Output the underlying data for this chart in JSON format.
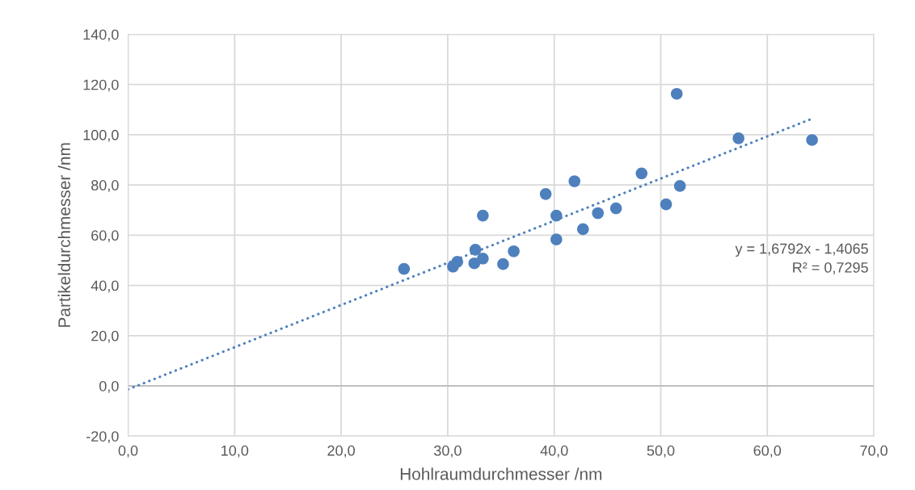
{
  "chart_data": {
    "type": "scatter",
    "xlabel": "Hohlraumdurchmesser /nm",
    "ylabel": "Partikeldurchmesser /nm",
    "xlim": [
      0,
      70
    ],
    "ylim": [
      -20,
      140
    ],
    "xticks": [
      {
        "value": 0,
        "label": "0,0"
      },
      {
        "value": 10,
        "label": "10,0"
      },
      {
        "value": 20,
        "label": "20,0"
      },
      {
        "value": 30,
        "label": "30,0"
      },
      {
        "value": 40,
        "label": "40,0"
      },
      {
        "value": 50,
        "label": "50,0"
      },
      {
        "value": 60,
        "label": "60,0"
      },
      {
        "value": 70,
        "label": "70,0"
      }
    ],
    "yticks": [
      {
        "value": -20,
        "label": "-20,0"
      },
      {
        "value": 0,
        "label": "0,0"
      },
      {
        "value": 20,
        "label": "20,0"
      },
      {
        "value": 40,
        "label": "40,0"
      },
      {
        "value": 60,
        "label": "60,0"
      },
      {
        "value": 80,
        "label": "80,0"
      },
      {
        "value": 100,
        "label": "100,0"
      },
      {
        "value": 120,
        "label": "120,0"
      },
      {
        "value": 140,
        "label": "140,0"
      }
    ],
    "grid": true,
    "marker": "circle",
    "annotations": [
      "y = 1,6792x - 1,4065",
      "R² = 0,7295"
    ],
    "series": [
      {
        "color": "#4e80bd",
        "x": [
          25.9,
          30.5,
          30.9,
          32.6,
          32.5,
          33.3,
          33.3,
          35.2,
          36.2,
          39.2,
          40.2,
          40.2,
          41.9,
          42.7,
          44.1,
          45.8,
          50.5,
          48.2,
          51.8,
          51.5,
          57.3,
          64.2
        ],
        "values": [
          46.6,
          47.5,
          49.4,
          54.2,
          48.8,
          50.7,
          67.8,
          48.5,
          53.6,
          76.4,
          67.8,
          58.3,
          81.5,
          62.4,
          68.8,
          70.7,
          72.3,
          84.6,
          79.6,
          116.3,
          98.6,
          97.9
        ]
      },
      {
        "type": "line",
        "color": "#4e80bd",
        "line_style": "dotted",
        "marker": "none",
        "x": [
          0,
          64.2
        ],
        "values": [
          -1.4,
          106.4
        ]
      }
    ]
  }
}
